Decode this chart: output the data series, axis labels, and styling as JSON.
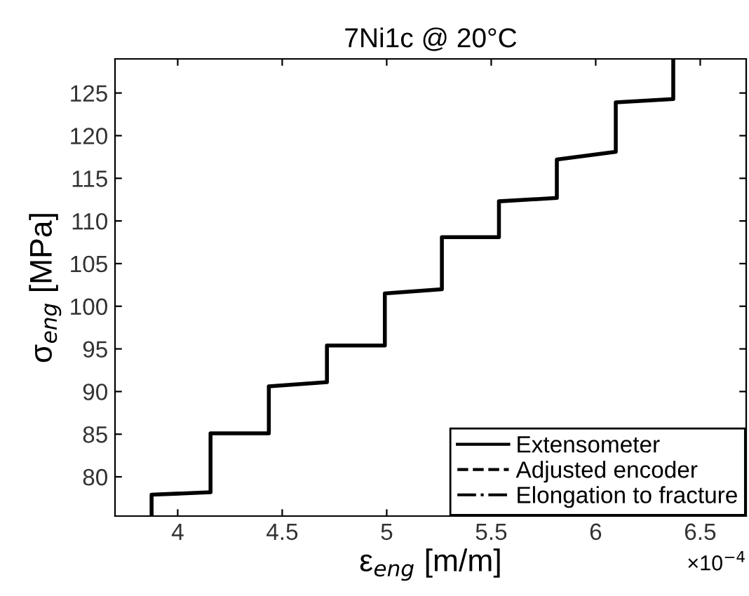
{
  "chart_data": {
    "type": "line",
    "title": "7Ni1c @ 20°C",
    "xlabel": "ε$_{eng}$ [m/m]",
    "ylabel": "σ$_{eng}$ [MPa]",
    "series": [
      {
        "name": "Extensometer",
        "color": "#000000",
        "line_style": "solid",
        "x": [
          3.875,
          3.875,
          4.157,
          4.157,
          4.436,
          4.436,
          4.714,
          4.714,
          4.991,
          4.991,
          5.264,
          5.264,
          5.537,
          5.537,
          5.814,
          5.814,
          6.096,
          6.096,
          6.371,
          6.371
        ],
        "values": [
          75.4,
          77.9,
          78.2,
          85.1,
          85.1,
          90.6,
          91.1,
          95.4,
          95.4,
          101.5,
          102.0,
          108.1,
          108.1,
          112.3,
          112.7,
          117.2,
          118.1,
          123.9,
          124.3,
          129
        ]
      },
      {
        "name": "Adjusted encoder",
        "color": "#000000",
        "line_style": "dashed"
      },
      {
        "name": "Elongation to fracture",
        "color": "#000000",
        "line_style": "dashdot"
      }
    ],
    "xlim": [
      3.7,
      6.72
    ],
    "xticks": [
      4,
      4.5,
      5,
      5.5,
      6,
      6.5
    ],
    "ylim": [
      75.4,
      129
    ],
    "yticks": [
      80,
      85,
      90,
      95,
      100,
      105,
      110,
      115,
      120,
      125
    ],
    "annotations": [
      "×10$^{−4}$"
    ],
    "legend": "bottom right",
    "grid": false
  }
}
